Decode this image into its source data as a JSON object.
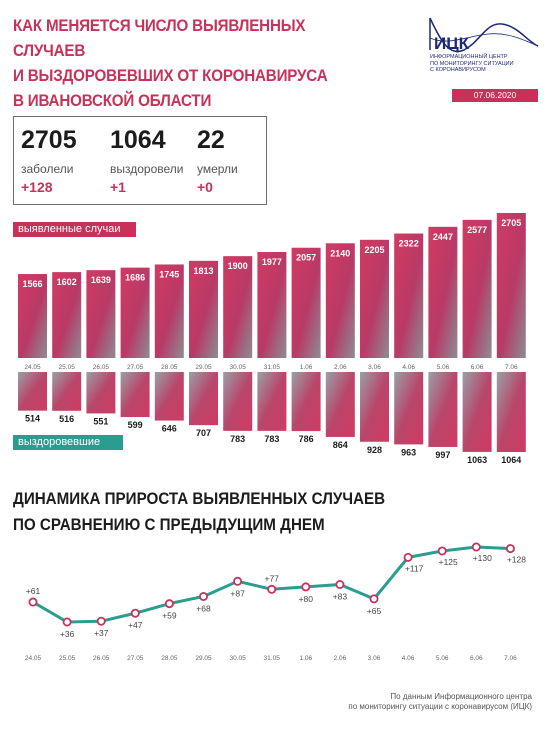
{
  "header": {
    "title_lines": [
      "КАК МЕНЯЕТСЯ ЧИСЛО ВЫЯВЛЕННЫХ СЛУЧАЕВ",
      "И ВЫЗДОРОВЕВШИХ ОТ КОРОНАВИРУСА",
      "В ИВАНОВСКОЙ ОБЛАСТИ"
    ],
    "logo_text": "ИЦК",
    "logo_sub": [
      "ИНФОРМАЦИОННЫЙ ЦЕНТР",
      "ПО МОНИТОРИНГУ СИТУАЦИИ",
      "С КОРОНАВИРУСОМ"
    ],
    "date": "07.06.2020"
  },
  "stats": [
    {
      "value": "2705",
      "label": "заболели",
      "delta": "+128"
    },
    {
      "value": "1064",
      "label": "выздоровели",
      "delta": "+1"
    },
    {
      "value": "22",
      "label": "умерли",
      "delta": "+0"
    }
  ],
  "tags": {
    "cases": "выявленные случаи",
    "recovered": "выздоровевшие"
  },
  "section2_title": [
    "ДИНАМИКА ПРИРОСТА ВЫЯВЛЕННЫХ СЛУЧАЕВ",
    "ПО СРАВНЕНИЮ С ПРЕДЫДУЩИМ ДНЕМ"
  ],
  "footer": [
    "По данным Информационного центра",
    "по мониторингу ситуации с коронавирусом (ИЦК)"
  ],
  "colors": {
    "cases": "#c8325a",
    "recovered": "#2a9d8f",
    "line": "#2a9d8f",
    "marker": "#c8325a"
  },
  "chart_data": [
    {
      "type": "bar",
      "categories": [
        "24.05",
        "25.05",
        "26.05",
        "27.05",
        "28.05",
        "29.05",
        "30.05",
        "31.05",
        "1.06",
        "2.06",
        "3.06",
        "4.06",
        "5.06",
        "6.06",
        "7.06"
      ],
      "series": [
        {
          "name": "выявленные случаи",
          "values": [
            1566,
            1602,
            1639,
            1686,
            1745,
            1813,
            1900,
            1977,
            2057,
            2140,
            2205,
            2322,
            2447,
            2577,
            2705
          ]
        },
        {
          "name": "выздоровевшие",
          "values": [
            514,
            516,
            551,
            599,
            646,
            707,
            783,
            783,
            786,
            864,
            928,
            963,
            997,
            1063,
            1064
          ]
        }
      ]
    },
    {
      "type": "line",
      "x": [
        "24.05",
        "25.05",
        "26.05",
        "27.05",
        "28.05",
        "29.05",
        "30.05",
        "31.05",
        "1.06",
        "2.06",
        "3.06",
        "4.06",
        "5.06",
        "6.06",
        "7.06"
      ],
      "values": [
        61,
        36,
        37,
        47,
        59,
        68,
        87,
        77,
        80,
        83,
        65,
        117,
        125,
        130,
        128
      ],
      "labels": [
        "+61",
        "+36",
        "+37",
        "+47",
        "+59",
        "+68",
        "+87",
        "+77",
        "+80",
        "+83",
        "+65",
        "+117",
        "+125",
        "+130",
        "+128"
      ]
    }
  ]
}
